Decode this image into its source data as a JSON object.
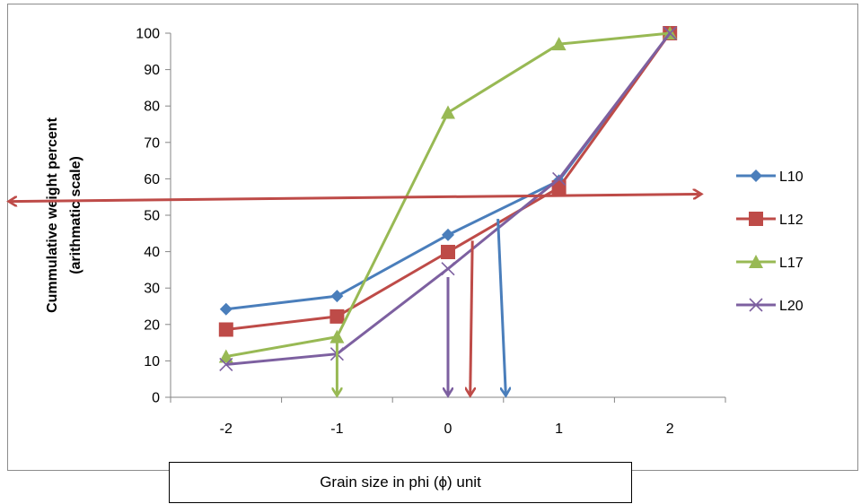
{
  "chart_data": {
    "type": "line",
    "xlabel": "Grain size in phi (ϕ) unit",
    "ylabel_lines": [
      "Cummulative weight percent",
      "(arithmatic scale)"
    ],
    "xlim": [
      -2.5,
      2.5
    ],
    "ylim": [
      0,
      100
    ],
    "x_ticks": [
      -2,
      -1,
      0,
      1,
      2
    ],
    "y_ticks": [
      0,
      10,
      20,
      30,
      40,
      50,
      60,
      70,
      80,
      90,
      100
    ],
    "grid": false,
    "legend_position": "right",
    "series": [
      {
        "name": "L10",
        "color": "#4a7ebb",
        "marker": "diamond",
        "x": [
          -2,
          -1,
          0,
          1,
          2
        ],
        "y": [
          24.2,
          27.8,
          44.6,
          59.5,
          100
        ]
      },
      {
        "name": "L12",
        "color": "#be4b48",
        "marker": "square",
        "x": [
          -2,
          -1,
          0,
          1,
          2
        ],
        "y": [
          18.6,
          22.2,
          39.9,
          57.6,
          100
        ]
      },
      {
        "name": "L17",
        "color": "#98b954",
        "marker": "triangle",
        "x": [
          -2,
          -1,
          0,
          1,
          2
        ],
        "y": [
          11.2,
          16.6,
          78.2,
          97.0,
          100
        ]
      },
      {
        "name": "L20",
        "color": "#7d60a0",
        "marker": "x",
        "x": [
          -2,
          -1,
          0,
          1,
          2
        ],
        "y": [
          9.0,
          11.9,
          35.3,
          60.0,
          100
        ]
      }
    ],
    "annotations": {
      "horizontal_arrow": {
        "color": "#be4b48",
        "y_left": 53.8,
        "y_right": 55.8,
        "x_from": -2.5,
        "x_to": 2.2
      },
      "down_arrows": [
        {
          "color": "#98b954",
          "x": -1.0,
          "x_end": -1.0,
          "y_from": 15.0,
          "y_to": 0
        },
        {
          "color": "#7d60a0",
          "x": 0.0,
          "x_end": 0.0,
          "y_from": 33.0,
          "y_to": 0
        },
        {
          "color": "#be4b48",
          "x": 0.22,
          "x_end": 0.2,
          "y_from": 43.0,
          "y_to": 0
        },
        {
          "color": "#4a7ebb",
          "x": 0.45,
          "x_end": 0.52,
          "y_from": 49.0,
          "y_to": 0
        }
      ]
    }
  }
}
